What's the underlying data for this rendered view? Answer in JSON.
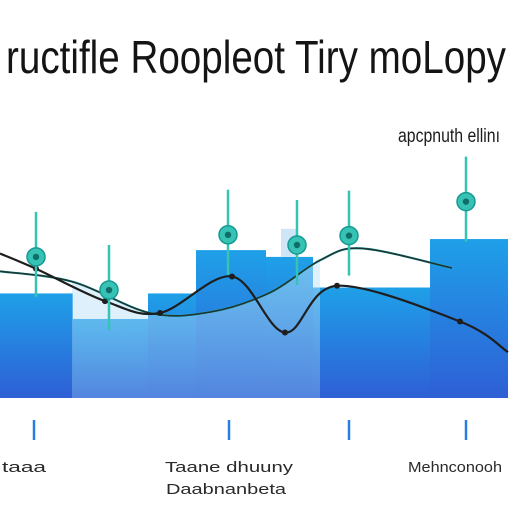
{
  "chart_data": {
    "type": "bar",
    "title": "ructifle Roopleot Tiry moLopy",
    "annotation": "apcpnuth ellinı",
    "x_tick_labels": [
      {
        "lines": [
          "taaa"
        ]
      },
      {
        "lines": [
          "Taane dhuuny",
          "Daabnanbeta"
        ]
      },
      {
        "lines": [
          "Mehnconooh"
        ]
      }
    ],
    "values": [
      123,
      93,
      123,
      174,
      166,
      130,
      130,
      187
    ],
    "overlay_bar": {
      "bar_index": 4,
      "value": 199
    },
    "series": [
      {
        "type": "line",
        "values": [
          170,
          152,
          114,
          100,
          143,
          77,
          132,
          90,
          54
        ]
      },
      {
        "type": "line",
        "values": [
          149,
          137,
          100,
          101,
          124,
          162,
          176,
          153
        ]
      },
      {
        "type": "markers",
        "values": [
          166,
          127,
          192,
          180,
          191,
          231
        ]
      }
    ],
    "colors": {
      "bar_top": "#1fa0e8",
      "bar_bottom": "#2e5fd6",
      "overlay_bar": "#cfe6f7",
      "line_dark": "#1e1e1e",
      "line_teal": "#23b3b0",
      "marker": "#36c2b4",
      "tick": "#2a7ee0"
    }
  }
}
